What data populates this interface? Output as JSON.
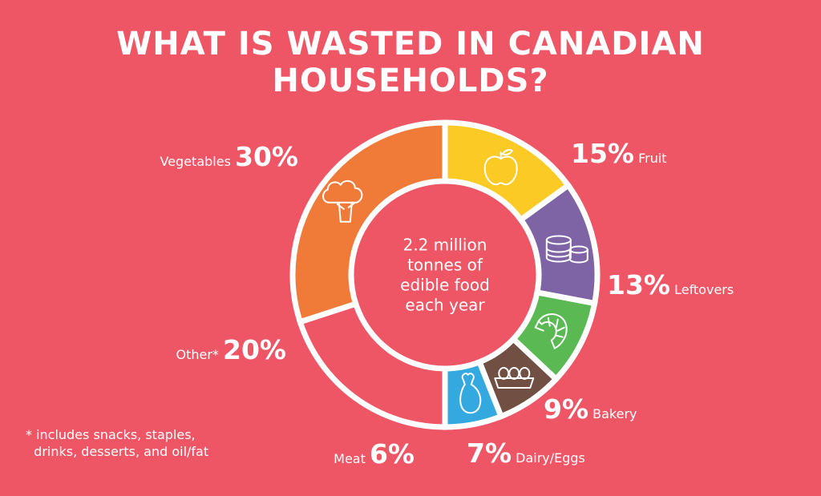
{
  "title": "WHAT IS WASTED IN CANADIAN HOUSEHOLDS?",
  "center_text": [
    "2.2 million",
    "tonnes of",
    "edible food",
    "each year"
  ],
  "footnote": "* includes snacks, staples,\n  drinks, desserts, and oil/fat",
  "colors": {
    "background": "#ee5565",
    "vegetables": "#f07a38",
    "fruit": "#fcca25",
    "leftovers": "#7f64a5",
    "bakery": "#5ab953",
    "dairy_eggs": "#714f42",
    "meat": "#33a9e0",
    "other": "#ee5565"
  },
  "chart_data": {
    "type": "pie",
    "title": "WHAT IS WASTED IN CANADIAN HOUSEHOLDS?",
    "style": "donut",
    "slices": [
      {
        "name": "Fruit",
        "label": "15%",
        "value": 15,
        "color": "#fcca25",
        "icon": "apple-icon"
      },
      {
        "name": "Leftovers",
        "label": "13%",
        "value": 13,
        "color": "#7f64a5",
        "icon": "cans-icon"
      },
      {
        "name": "Bakery",
        "label": "9%",
        "value": 9,
        "color": "#5ab953",
        "icon": "croissant-icon"
      },
      {
        "name": "Dairy/Eggs",
        "label": "7%",
        "value": 7,
        "color": "#714f42",
        "icon": "egg-carton-icon"
      },
      {
        "name": "Meat",
        "label": "6%",
        "value": 6,
        "color": "#33a9e0",
        "icon": "drumstick-icon"
      },
      {
        "name": "Other*",
        "label": "20%",
        "value": 20,
        "color": "#ee5565",
        "icon": ""
      },
      {
        "name": "Vegetables",
        "label": "30%",
        "value": 30,
        "color": "#f07a38",
        "icon": "broccoli-icon"
      }
    ]
  }
}
